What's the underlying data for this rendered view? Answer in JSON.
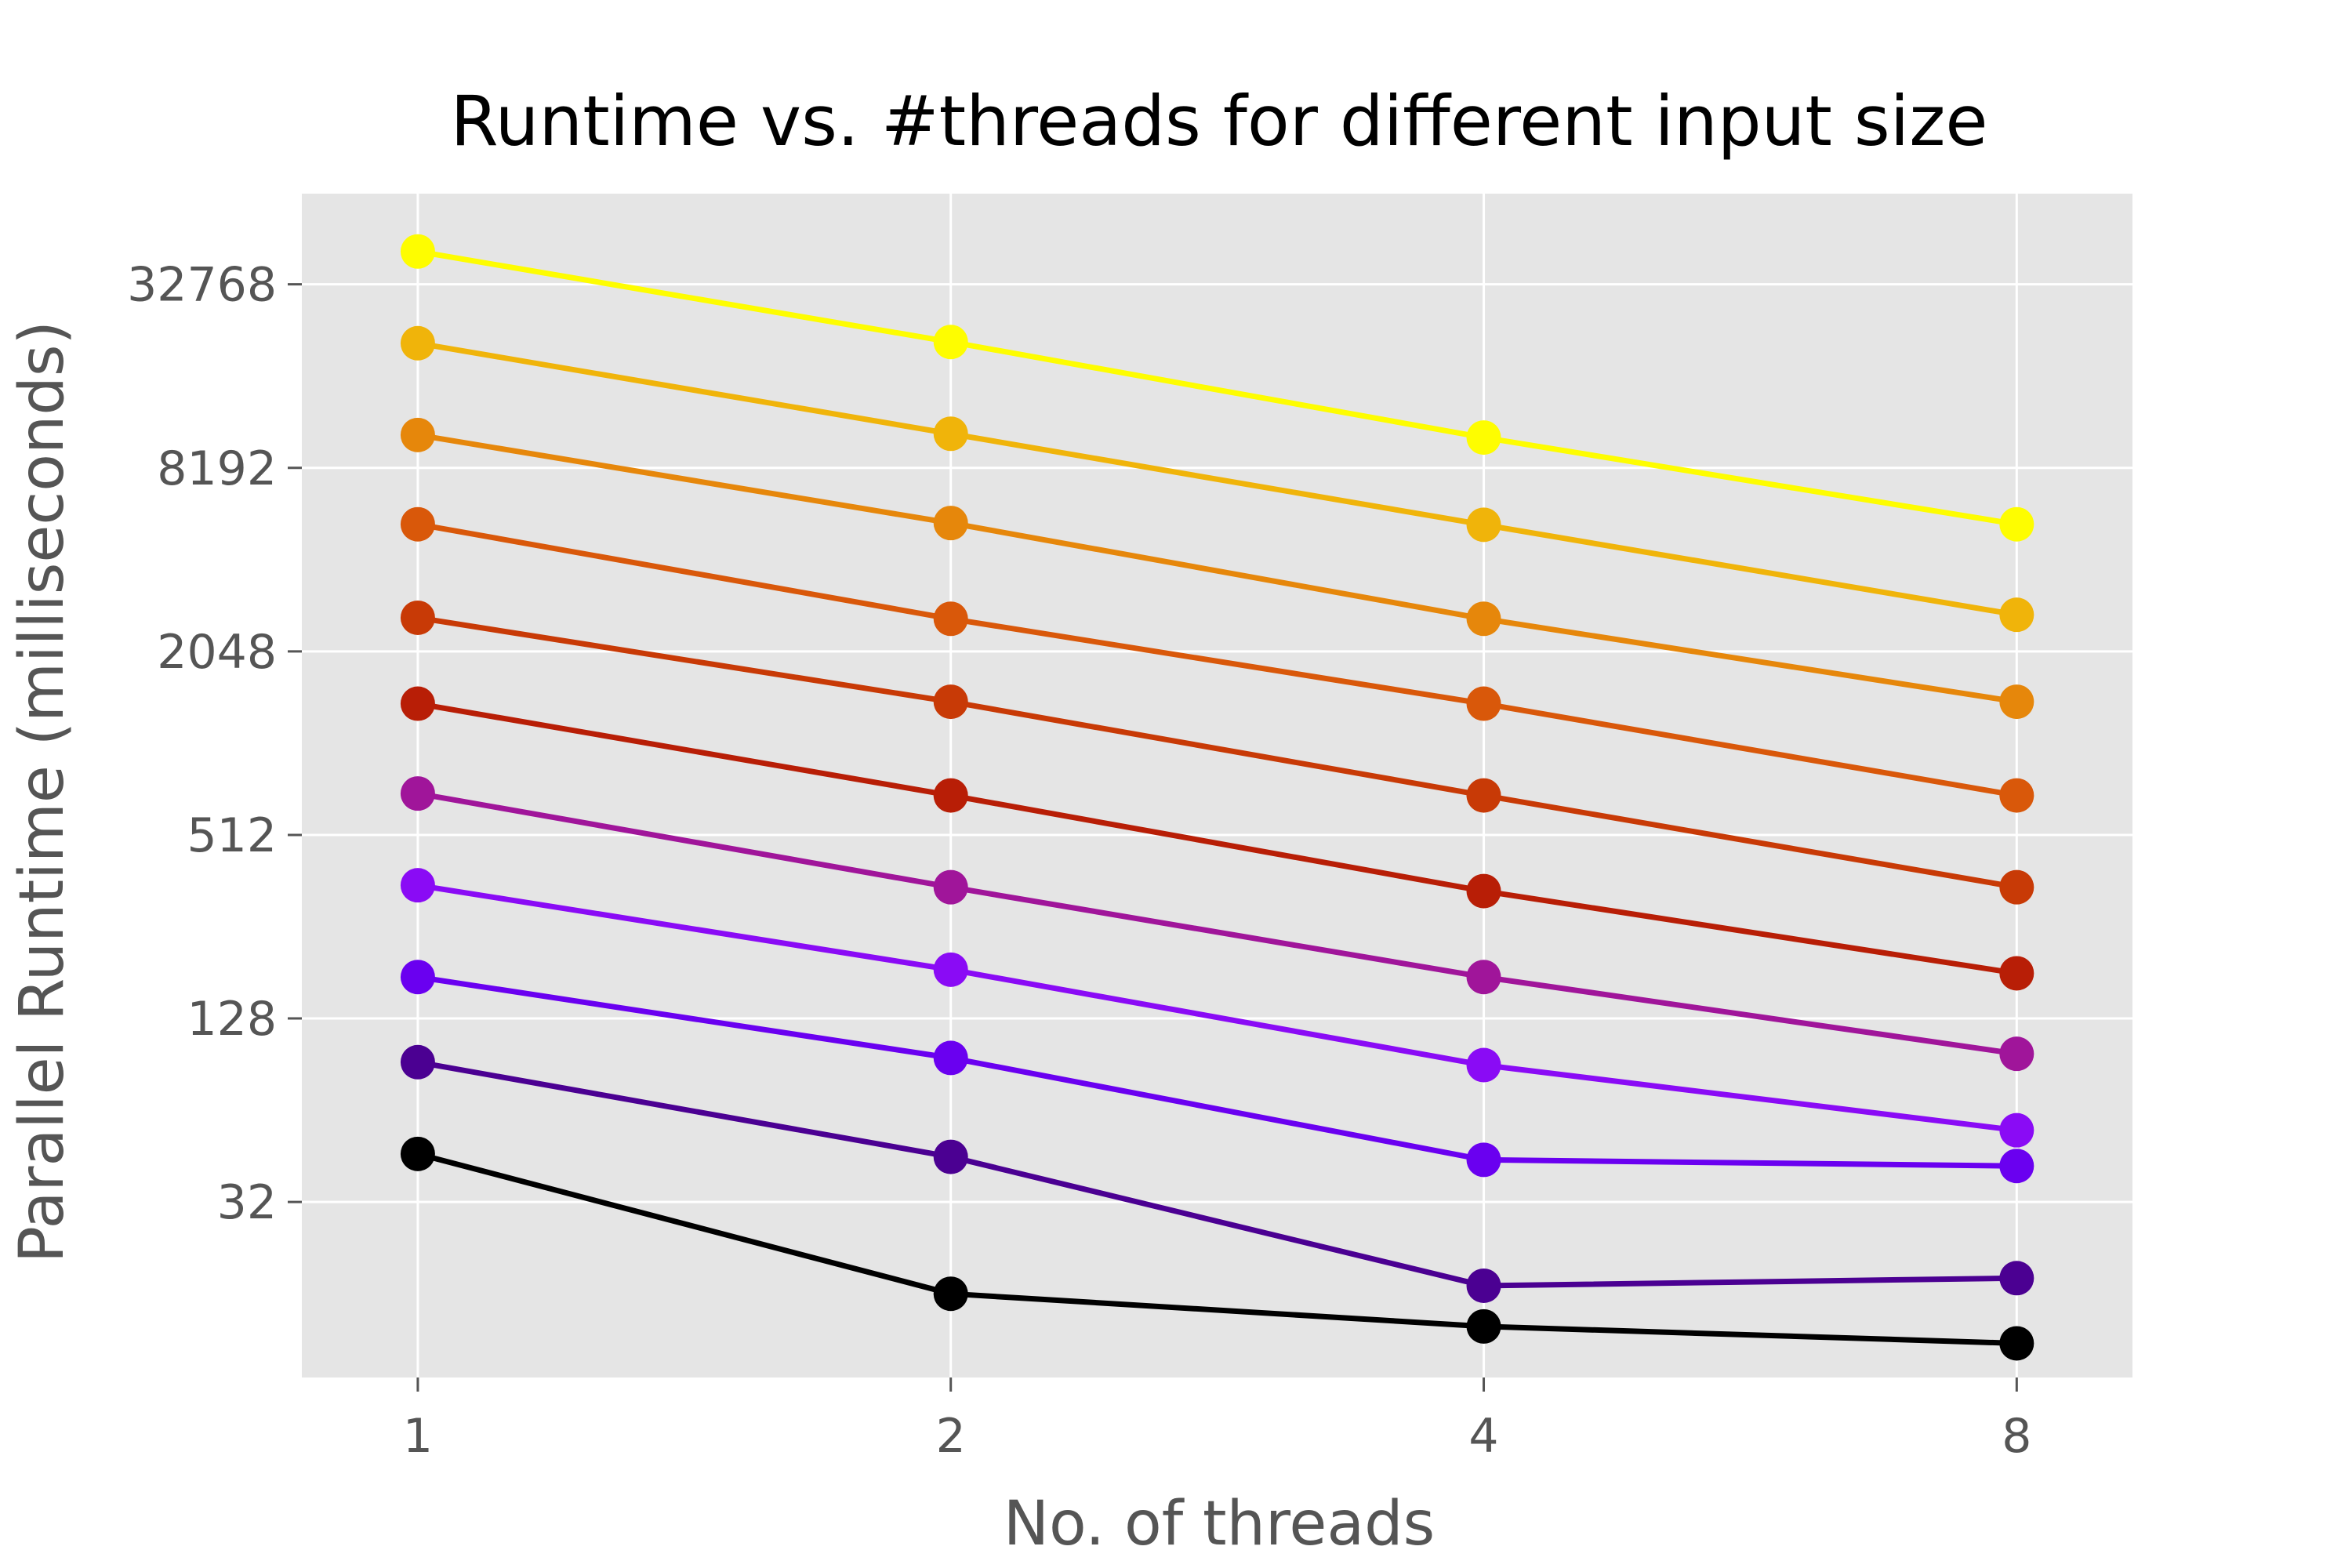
{
  "chart_data": {
    "type": "line",
    "title": "Runtime vs. #threads for different input size",
    "xlabel": "No. of threads",
    "ylabel": "Parallel Runtime (milliseconds)",
    "x_scale": "log2",
    "y_scale": "log2",
    "x": [
      1,
      2,
      4,
      8
    ],
    "x_ticks": [
      "1",
      "2",
      "4",
      "8"
    ],
    "y_ticks": [
      "32",
      "128",
      "512",
      "2048",
      "8192",
      "32768"
    ],
    "xlim": [
      0.86,
      9.3
    ],
    "ylim": [
      8.5,
      65000
    ],
    "grid": true,
    "background": "#e5e5e5",
    "series": [
      {
        "color": "#000000",
        "values": [
          46,
          16,
          12.5,
          11
        ]
      },
      {
        "color": "#4b0092",
        "values": [
          92,
          45,
          17,
          18
        ]
      },
      {
        "color": "#6a00f0",
        "values": [
          175,
          95,
          44,
          42
        ]
      },
      {
        "color": "#8a0bf5",
        "values": [
          350,
          185,
          90,
          55
        ]
      },
      {
        "color": "#a0159a",
        "values": [
          700,
          345,
          175,
          98
        ]
      },
      {
        "color": "#b81e06",
        "values": [
          1380,
          690,
          335,
          180
        ]
      },
      {
        "color": "#c83a06",
        "values": [
          2640,
          1400,
          690,
          345
        ]
      },
      {
        "color": "#d9580a",
        "values": [
          5350,
          2620,
          1380,
          690
        ]
      },
      {
        "color": "#e6870b",
        "values": [
          10500,
          5400,
          2620,
          1400
        ]
      },
      {
        "color": "#f0b40a",
        "values": [
          21000,
          10600,
          5330,
          2700
        ]
      },
      {
        "color": "#fefd00",
        "values": [
          42000,
          21200,
          10300,
          5350
        ]
      }
    ]
  }
}
